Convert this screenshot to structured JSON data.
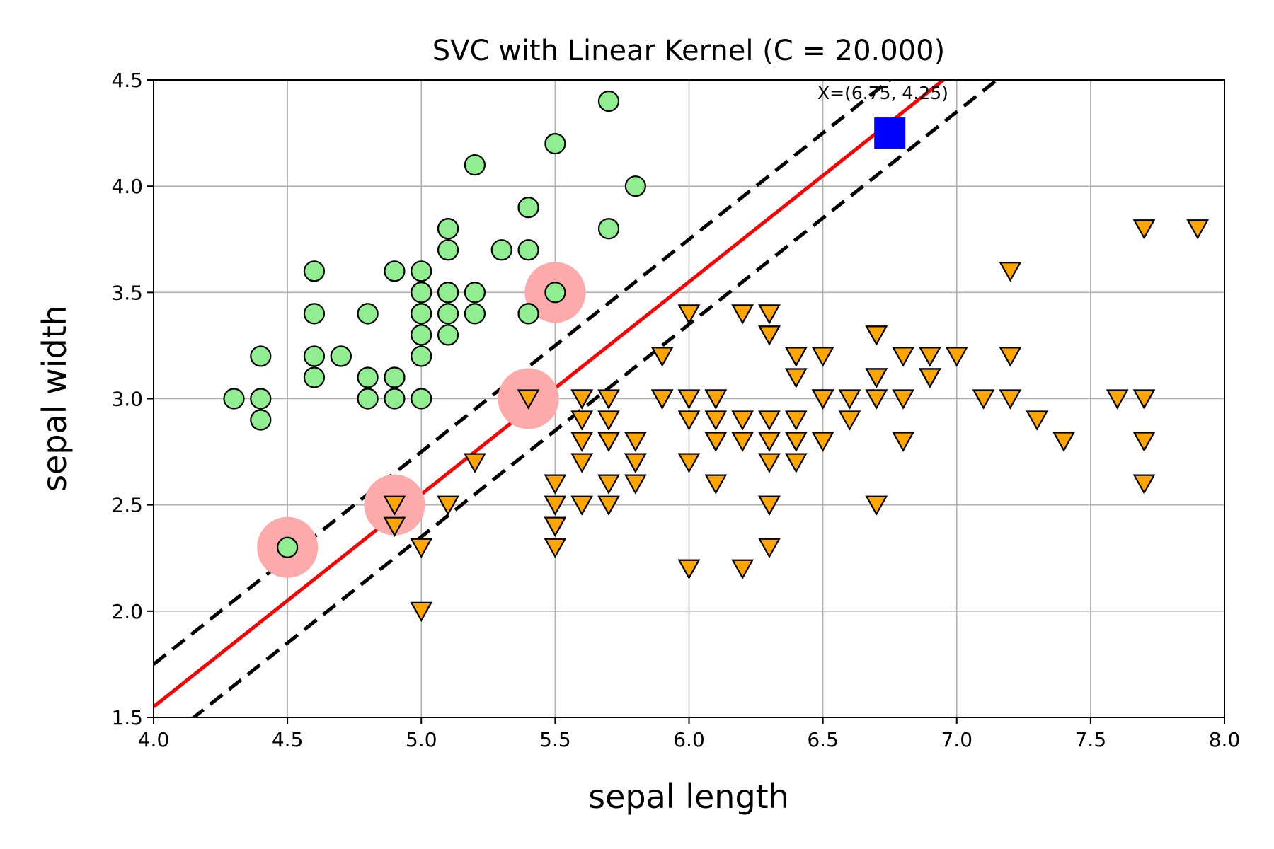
{
  "chart_data": {
    "type": "scatter",
    "title": "SVC with Linear Kernel (C = 20.000)",
    "xlabel": "sepal length",
    "ylabel": "sepal width",
    "xlim": [
      4.0,
      8.0
    ],
    "ylim": [
      1.5,
      4.5
    ],
    "xticks": [
      "4.0",
      "4.5",
      "5.0",
      "5.5",
      "6.0",
      "6.5",
      "7.0",
      "7.5",
      "8.0"
    ],
    "yticks": [
      "1.5",
      "2.0",
      "2.5",
      "3.0",
      "3.5",
      "4.0",
      "4.5"
    ],
    "grid": true,
    "colors": {
      "class0": "#90ee90",
      "class1": "#ffa500",
      "boundary": "#ff0000",
      "margin": "#000000",
      "support_vector": "#ffaaaa",
      "query": "#0000ff",
      "grid": "#b0b0b0"
    },
    "series": [
      {
        "marker": "circle",
        "points": [
          [
            5.1,
            3.5
          ],
          [
            4.9,
            3.0
          ],
          [
            4.7,
            3.2
          ],
          [
            4.6,
            3.1
          ],
          [
            5.0,
            3.6
          ],
          [
            5.4,
            3.9
          ],
          [
            4.6,
            3.4
          ],
          [
            5.0,
            3.4
          ],
          [
            4.4,
            2.9
          ],
          [
            4.9,
            3.1
          ],
          [
            5.4,
            3.7
          ],
          [
            4.8,
            3.4
          ],
          [
            4.8,
            3.0
          ],
          [
            4.3,
            3.0
          ],
          [
            5.8,
            4.0
          ],
          [
            5.7,
            4.4
          ],
          [
            5.4,
            3.9
          ],
          [
            5.1,
            3.5
          ],
          [
            5.7,
            3.8
          ],
          [
            5.1,
            3.8
          ],
          [
            5.4,
            3.4
          ],
          [
            5.1,
            3.7
          ],
          [
            4.6,
            3.6
          ],
          [
            5.1,
            3.3
          ],
          [
            4.8,
            3.4
          ],
          [
            5.0,
            3.0
          ],
          [
            5.0,
            3.4
          ],
          [
            5.2,
            3.5
          ],
          [
            5.2,
            3.4
          ],
          [
            4.7,
            3.2
          ],
          [
            4.8,
            3.1
          ],
          [
            5.4,
            3.4
          ],
          [
            5.2,
            4.1
          ],
          [
            5.5,
            4.2
          ],
          [
            4.9,
            3.1
          ],
          [
            5.0,
            3.2
          ],
          [
            5.5,
            3.5
          ],
          [
            4.9,
            3.6
          ],
          [
            4.4,
            3.0
          ],
          [
            5.1,
            3.4
          ],
          [
            5.0,
            3.5
          ],
          [
            4.5,
            2.3
          ],
          [
            4.4,
            3.2
          ],
          [
            5.0,
            3.5
          ],
          [
            5.1,
            3.8
          ],
          [
            4.8,
            3.0
          ],
          [
            5.1,
            3.8
          ],
          [
            4.6,
            3.2
          ],
          [
            5.3,
            3.7
          ],
          [
            5.0,
            3.3
          ]
        ]
      },
      {
        "marker": "triangle-down",
        "points": [
          [
            7.0,
            3.2
          ],
          [
            6.4,
            3.2
          ],
          [
            6.9,
            3.1
          ],
          [
            5.5,
            2.3
          ],
          [
            6.5,
            2.8
          ],
          [
            5.7,
            2.8
          ],
          [
            6.3,
            3.3
          ],
          [
            4.9,
            2.4
          ],
          [
            6.6,
            2.9
          ],
          [
            5.2,
            2.7
          ],
          [
            5.0,
            2.0
          ],
          [
            5.9,
            3.0
          ],
          [
            6.0,
            2.2
          ],
          [
            6.1,
            2.9
          ],
          [
            5.6,
            2.9
          ],
          [
            6.7,
            3.1
          ],
          [
            5.6,
            3.0
          ],
          [
            5.8,
            2.7
          ],
          [
            6.2,
            2.2
          ],
          [
            5.6,
            2.5
          ],
          [
            5.9,
            3.2
          ],
          [
            6.1,
            2.8
          ],
          [
            6.3,
            2.5
          ],
          [
            6.1,
            2.8
          ],
          [
            6.4,
            2.9
          ],
          [
            6.6,
            3.0
          ],
          [
            6.8,
            2.8
          ],
          [
            6.7,
            3.0
          ],
          [
            6.0,
            2.9
          ],
          [
            5.7,
            2.6
          ],
          [
            5.5,
            2.4
          ],
          [
            5.5,
            2.4
          ],
          [
            5.8,
            2.7
          ],
          [
            6.0,
            2.7
          ],
          [
            5.4,
            3.0
          ],
          [
            6.0,
            3.4
          ],
          [
            6.7,
            3.1
          ],
          [
            6.3,
            2.3
          ],
          [
            5.6,
            3.0
          ],
          [
            5.5,
            2.5
          ],
          [
            5.5,
            2.6
          ],
          [
            6.1,
            3.0
          ],
          [
            5.8,
            2.6
          ],
          [
            5.0,
            2.3
          ],
          [
            5.6,
            2.7
          ],
          [
            5.7,
            3.0
          ],
          [
            5.7,
            2.9
          ],
          [
            6.2,
            2.9
          ],
          [
            5.1,
            2.5
          ],
          [
            5.7,
            2.8
          ],
          [
            6.3,
            3.3
          ],
          [
            5.8,
            2.7
          ],
          [
            7.1,
            3.0
          ],
          [
            6.3,
            2.9
          ],
          [
            6.5,
            3.0
          ],
          [
            7.6,
            3.0
          ],
          [
            4.9,
            2.5
          ],
          [
            7.3,
            2.9
          ],
          [
            6.7,
            2.5
          ],
          [
            7.2,
            3.6
          ],
          [
            6.5,
            3.2
          ],
          [
            6.4,
            2.7
          ],
          [
            6.8,
            3.0
          ],
          [
            5.7,
            2.5
          ],
          [
            5.8,
            2.8
          ],
          [
            6.4,
            3.2
          ],
          [
            6.5,
            3.0
          ],
          [
            7.7,
            3.8
          ],
          [
            7.7,
            2.6
          ],
          [
            6.0,
            2.2
          ],
          [
            6.9,
            3.2
          ],
          [
            5.6,
            2.8
          ],
          [
            7.7,
            2.8
          ],
          [
            6.3,
            2.7
          ],
          [
            6.7,
            3.3
          ],
          [
            7.2,
            3.2
          ],
          [
            6.2,
            2.8
          ],
          [
            6.1,
            3.0
          ],
          [
            6.4,
            2.8
          ],
          [
            7.2,
            3.0
          ],
          [
            7.4,
            2.8
          ],
          [
            7.9,
            3.8
          ],
          [
            6.4,
            2.8
          ],
          [
            6.3,
            2.8
          ],
          [
            6.1,
            2.6
          ],
          [
            7.7,
            3.0
          ],
          [
            6.3,
            3.4
          ],
          [
            6.4,
            3.1
          ],
          [
            6.0,
            3.0
          ],
          [
            6.9,
            3.1
          ],
          [
            6.7,
            3.1
          ],
          [
            6.9,
            3.1
          ],
          [
            5.8,
            2.7
          ],
          [
            6.8,
            3.2
          ],
          [
            6.7,
            3.3
          ],
          [
            6.7,
            3.0
          ],
          [
            6.3,
            2.5
          ],
          [
            6.5,
            3.0
          ],
          [
            6.2,
            3.4
          ],
          [
            5.9,
            3.0
          ]
        ]
      }
    ],
    "support_vectors": [
      [
        4.5,
        2.3
      ],
      [
        4.9,
        2.5
      ],
      [
        5.4,
        3.0
      ],
      [
        5.5,
        3.5
      ]
    ],
    "decision_boundary": {
      "slope": 1.0,
      "intercept": -2.45
    },
    "margins": [
      {
        "slope": 1.0,
        "intercept": -2.25
      },
      {
        "slope": 1.0,
        "intercept": -2.65
      }
    ],
    "query_point": {
      "x": 6.75,
      "y": 4.25,
      "label": "X=(6.75, 4.25)"
    }
  }
}
